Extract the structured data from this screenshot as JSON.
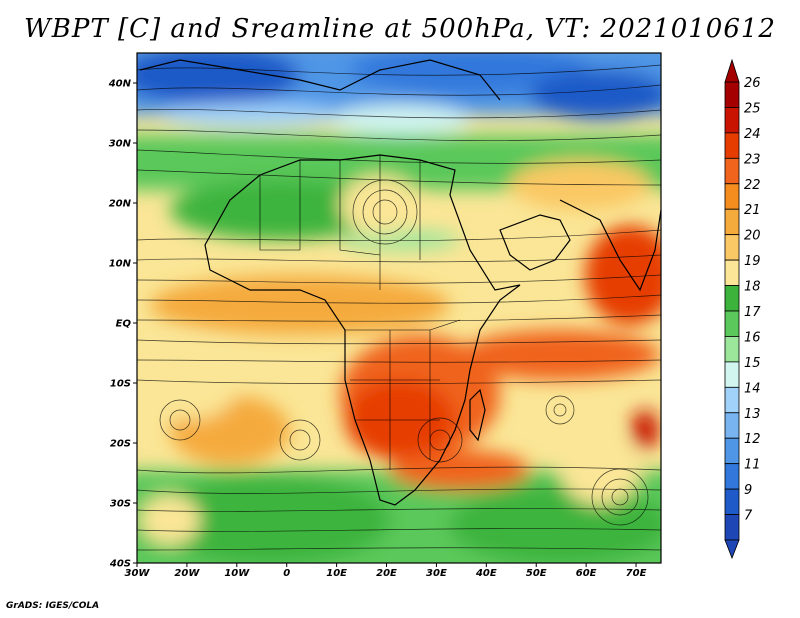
{
  "title": "WBPT [C] and Sreamline at 500hPa, VT: 2021010612",
  "credit": "GrADS: IGES/COLA",
  "map": {
    "lon_range": [
      -30,
      75
    ],
    "lat_range": [
      -40,
      45
    ],
    "lat_ticks": [
      "40N",
      "30N",
      "20N",
      "10N",
      "EQ",
      "10S",
      "20S",
      "30S",
      "40S"
    ],
    "lat_values": [
      40,
      30,
      20,
      10,
      0,
      -10,
      -20,
      -30,
      -40
    ],
    "lon_ticks": [
      "30W",
      "20W",
      "10W",
      "0",
      "10E",
      "20E",
      "30E",
      "40E",
      "50E",
      "60E",
      "70E"
    ],
    "lon_values": [
      -30,
      -20,
      -10,
      0,
      10,
      20,
      30,
      40,
      50,
      60,
      70
    ],
    "field": "WBPT",
    "units": "C",
    "level": "500hPa",
    "valid_time": "2021010612"
  },
  "colorbar": {
    "levels": [
      "26",
      "25",
      "24",
      "23",
      "22",
      "21",
      "20",
      "19",
      "18",
      "17",
      "16",
      "15",
      "14",
      "13",
      "12",
      "11",
      "9",
      "7"
    ],
    "colors": [
      "#a50000",
      "#c81400",
      "#e63c00",
      "#f0641e",
      "#f58c1e",
      "#f5aa3c",
      "#fac864",
      "#fae696",
      "#3cb43c",
      "#5ac85a",
      "#9be69b",
      "#d2f5f0",
      "#a0d2fa",
      "#78b4f0",
      "#5096e6",
      "#3278dc",
      "#1e5ac8",
      "#1e46b4"
    ]
  }
}
